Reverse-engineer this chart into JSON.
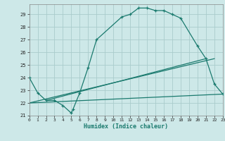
{
  "xlabel": "Humidex (Indice chaleur)",
  "xlim": [
    0,
    23
  ],
  "ylim": [
    21,
    29.8
  ],
  "yticks": [
    21,
    22,
    23,
    24,
    25,
    26,
    27,
    28,
    29
  ],
  "xticks": [
    0,
    1,
    2,
    3,
    4,
    5,
    6,
    7,
    8,
    9,
    10,
    11,
    12,
    13,
    14,
    15,
    16,
    17,
    18,
    19,
    20,
    21,
    22,
    23
  ],
  "bg_color": "#cde8e8",
  "grid_color": "#aacccc",
  "line_color": "#1a7a6e",
  "main_x": [
    0,
    1,
    2,
    3,
    4,
    5,
    5.2,
    6,
    7,
    8,
    11,
    12,
    13,
    14,
    15,
    16,
    17,
    18,
    20,
    21,
    22,
    23
  ],
  "main_y": [
    24.0,
    22.8,
    22.2,
    22.2,
    21.8,
    21.2,
    21.5,
    22.8,
    24.8,
    27.0,
    28.8,
    29.0,
    29.5,
    29.5,
    29.3,
    29.3,
    29.0,
    28.7,
    26.5,
    25.5,
    23.5,
    22.7
  ],
  "line1_x": [
    0,
    22
  ],
  "line1_y": [
    22.0,
    25.5
  ],
  "line2_x": [
    0,
    23
  ],
  "line2_y": [
    22.0,
    22.7
  ],
  "line3_x": [
    2,
    21
  ],
  "line3_y": [
    22.2,
    25.5
  ]
}
